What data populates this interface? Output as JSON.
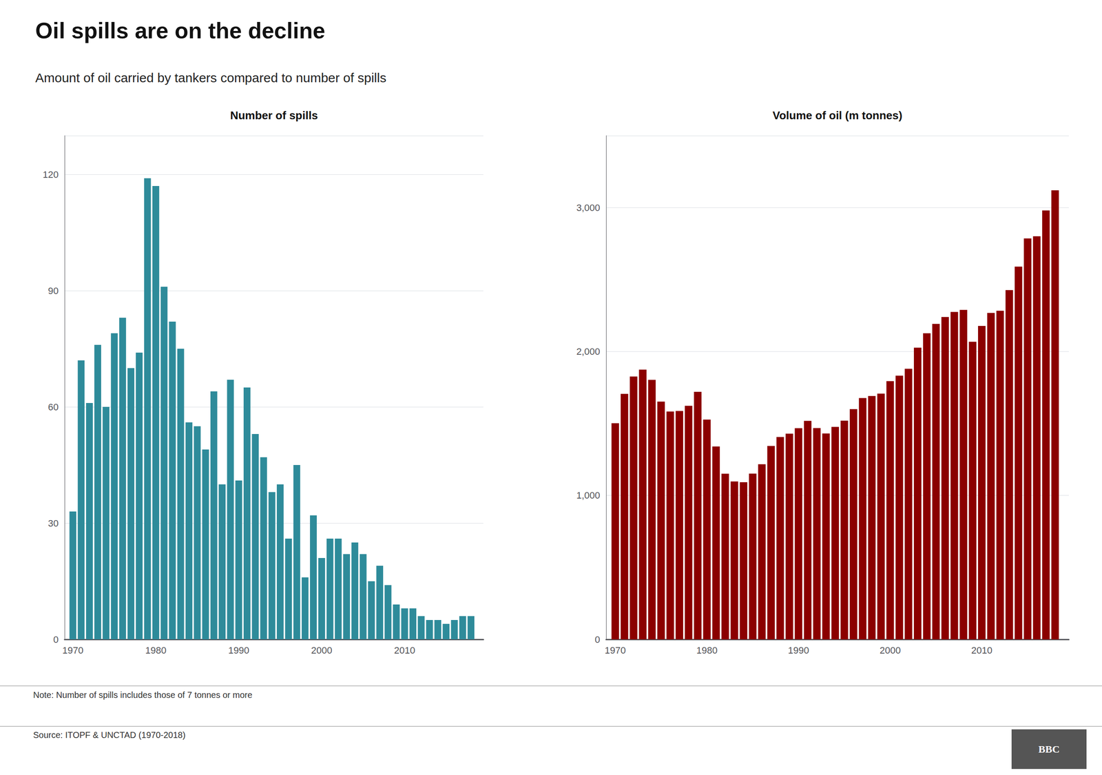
{
  "title": "Oil spills are on the decline",
  "subtitle": "Amount of oil carried by tankers compared to number of spills",
  "annotations": [
    "Note: Number of spills includes those of 7 tonnes or more",
    "Source: ITOPF & UNCTAD (1970-2018)",
    "BBC"
  ],
  "chart_data": [
    {
      "type": "bar",
      "title": "Number of spills",
      "x": [
        1970,
        1971,
        1972,
        1973,
        1974,
        1975,
        1976,
        1977,
        1978,
        1979,
        1980,
        1981,
        1982,
        1983,
        1984,
        1985,
        1986,
        1987,
        1988,
        1989,
        1990,
        1991,
        1992,
        1993,
        1994,
        1995,
        1996,
        1997,
        1998,
        1999,
        2000,
        2001,
        2002,
        2003,
        2004,
        2005,
        2006,
        2007,
        2008,
        2009,
        2010,
        2011,
        2012,
        2013,
        2014,
        2015,
        2016,
        2017,
        2018
      ],
      "values": [
        33,
        72,
        61,
        76,
        60,
        79,
        83,
        70,
        74,
        119,
        117,
        91,
        82,
        75,
        56,
        55,
        49,
        64,
        40,
        67,
        41,
        65,
        53,
        47,
        38,
        40,
        26,
        45,
        16,
        32,
        21,
        26,
        26,
        22,
        25,
        22,
        15,
        19,
        14,
        9,
        8,
        8,
        6,
        5,
        5,
        4,
        5,
        6,
        6
      ],
      "color": "#2e8b9a",
      "xlim": [
        1969,
        2019.5
      ],
      "xticks": [
        1970,
        1980,
        1990,
        2000,
        2010
      ],
      "ylim": [
        0,
        130
      ],
      "yticks": [
        0,
        30,
        60,
        90,
        120
      ],
      "grid": true
    },
    {
      "type": "bar",
      "title": "Volume of oil (m tonnes)",
      "x": [
        1970,
        1971,
        1972,
        1973,
        1974,
        1975,
        1976,
        1977,
        1978,
        1979,
        1980,
        1981,
        1982,
        1983,
        1984,
        1985,
        1986,
        1987,
        1988,
        1989,
        1990,
        1991,
        1992,
        1993,
        1994,
        1995,
        1996,
        1997,
        1998,
        1999,
        2000,
        2001,
        2002,
        2003,
        2004,
        2005,
        2006,
        2007,
        2008,
        2009,
        2010,
        2011,
        2012,
        2013,
        2014,
        2015,
        2016,
        2017,
        2018
      ],
      "values": [
        1502,
        1706,
        1826,
        1874,
        1803,
        1652,
        1583,
        1587,
        1623,
        1720,
        1527,
        1340,
        1151,
        1097,
        1092,
        1152,
        1217,
        1344,
        1406,
        1429,
        1467,
        1518,
        1468,
        1431,
        1476,
        1520,
        1600,
        1677,
        1691,
        1707,
        1794,
        1832,
        1880,
        2027,
        2127,
        2192,
        2240,
        2275,
        2289,
        2068,
        2178,
        2268,
        2283,
        2427,
        2590,
        2786,
        2801,
        2980,
        3120
      ],
      "color": "#8b0000",
      "xlim": [
        1969,
        2019.5
      ],
      "xticks": [
        1970,
        1980,
        1990,
        2000,
        2010
      ],
      "ylim": [
        0,
        3500
      ],
      "yticks": [
        0,
        {
          "value": 1000,
          "label": "1,000"
        },
        {
          "value": 2000,
          "label": "2,000"
        },
        {
          "value": 3000,
          "label": "3,000"
        }
      ],
      "grid": true
    }
  ]
}
